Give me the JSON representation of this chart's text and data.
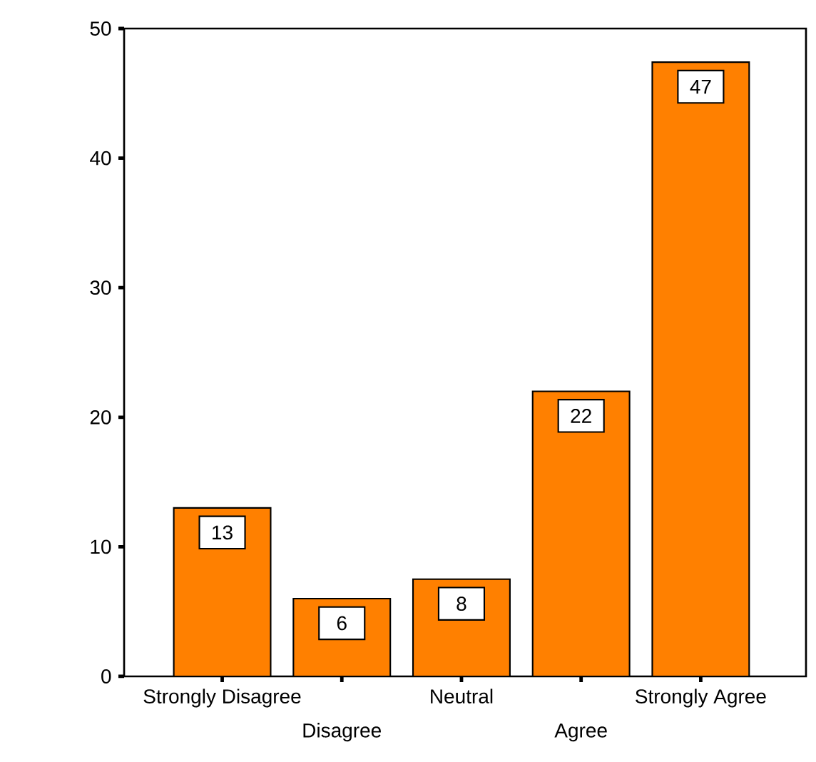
{
  "chart_data": {
    "type": "bar",
    "categories": [
      "Strongly Disagree",
      "Disagree",
      "Neutral",
      "Agree",
      "Strongly Agree"
    ],
    "values": [
      13,
      6,
      7.5,
      22,
      47.4
    ],
    "value_labels": [
      "13",
      "6",
      "8",
      "22",
      "47"
    ],
    "color": "#ff8000",
    "ylim": [
      0,
      50
    ],
    "yticks": [
      0,
      10,
      20,
      30,
      40,
      50
    ],
    "grid": false
  }
}
